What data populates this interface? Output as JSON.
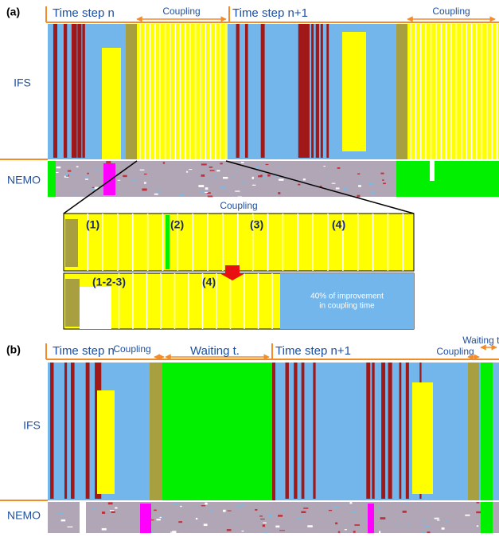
{
  "panel_a": {
    "label": "(a)",
    "time_step_n": "Time step n",
    "coupling_1": "Coupling",
    "time_step_n1": "Time step n+1",
    "coupling_2": "Coupling",
    "ifs": "IFS",
    "nemo": "NEMO",
    "zoom": {
      "title": "Coupling",
      "steps_before": [
        "(1)",
        "(2)",
        "(3)",
        "(4)"
      ],
      "steps_after": [
        "(1-2-3)",
        "(4)"
      ],
      "improvement": [
        "40% of improvement",
        "in coupling time"
      ]
    }
  },
  "panel_b": {
    "label": "(b)",
    "time_step_n": "Time step n",
    "coupling_1": "Coupling",
    "waiting_1": "Waiting t.",
    "time_step_n1": "Time step n+1",
    "waiting_2": "Waiting t.",
    "coupling_2": "Coupling",
    "ifs": "IFS",
    "nemo": "NEMO"
  }
}
